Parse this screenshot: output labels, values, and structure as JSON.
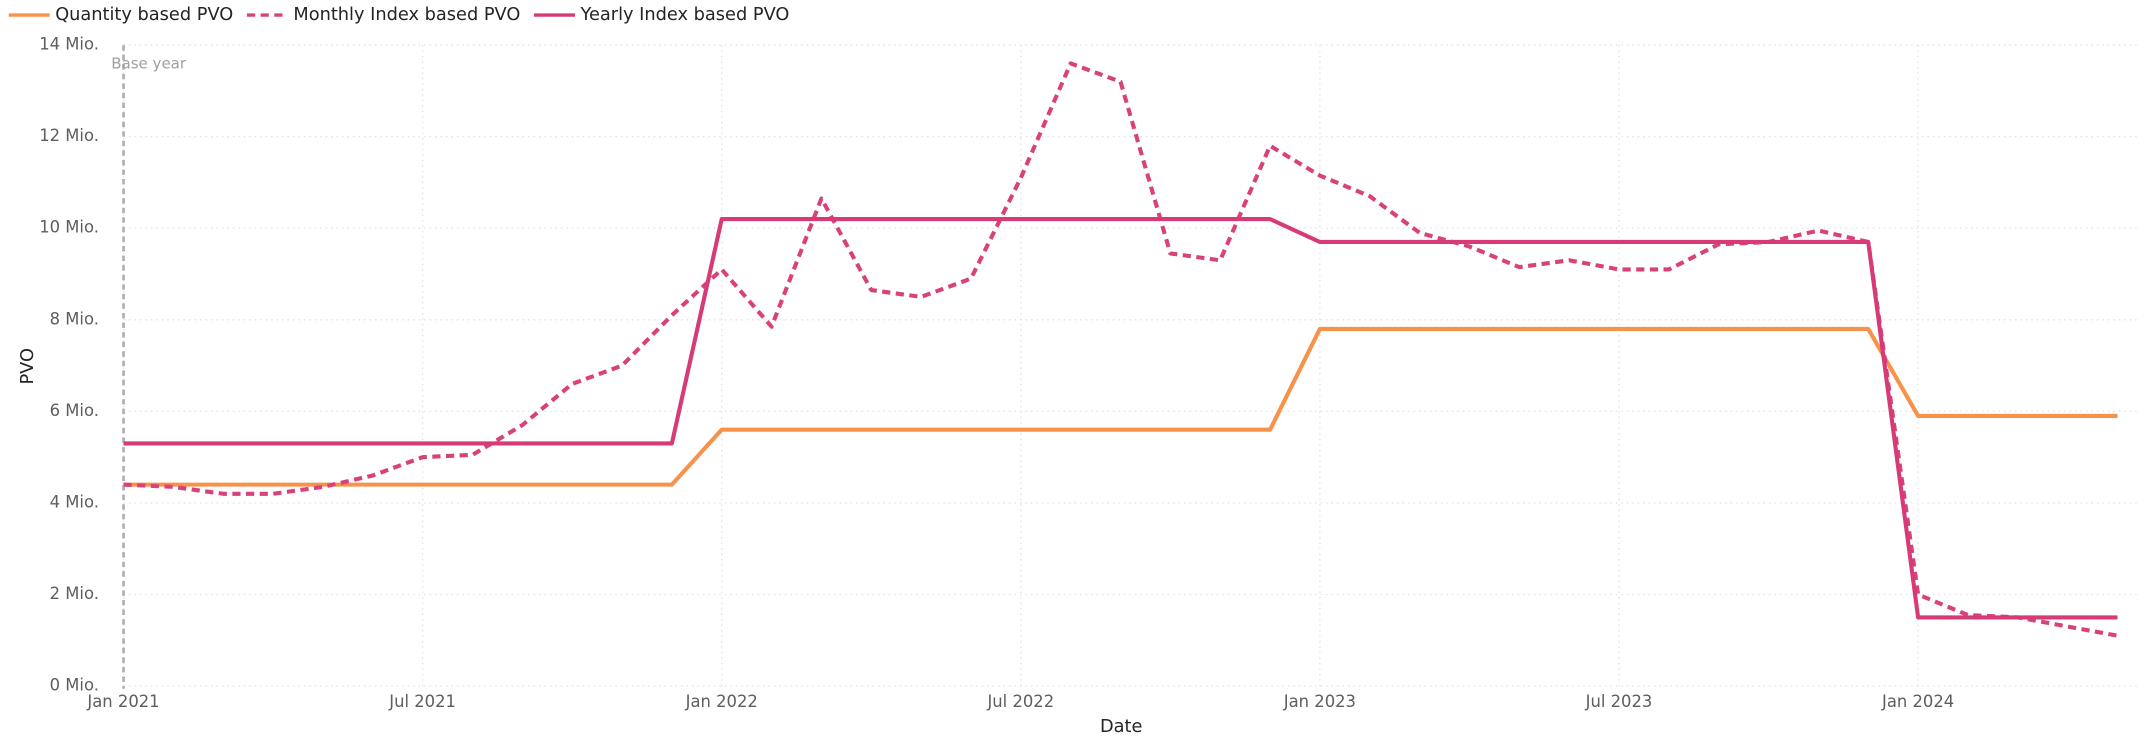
{
  "chart_data": {
    "type": "line",
    "x_label": "Date",
    "y_label": "PVO",
    "x": [
      "2021-01",
      "2021-02",
      "2021-03",
      "2021-04",
      "2021-05",
      "2021-06",
      "2021-07",
      "2021-08",
      "2021-09",
      "2021-10",
      "2021-11",
      "2021-12",
      "2022-01",
      "2022-02",
      "2022-03",
      "2022-04",
      "2022-05",
      "2022-06",
      "2022-07",
      "2022-08",
      "2022-09",
      "2022-10",
      "2022-11",
      "2022-12",
      "2023-01",
      "2023-02",
      "2023-03",
      "2023-04",
      "2023-05",
      "2023-06",
      "2023-07",
      "2023-08",
      "2023-09",
      "2023-10",
      "2023-11",
      "2023-12",
      "2024-01",
      "2024-02",
      "2024-03",
      "2024-04",
      "2024-05"
    ],
    "series": [
      {
        "name": "Quantity based PVO",
        "color": "#f7924a",
        "dash": false,
        "values": [
          4.4,
          4.4,
          4.4,
          4.4,
          4.4,
          4.4,
          4.4,
          4.4,
          4.4,
          4.4,
          4.4,
          4.4,
          5.6,
          5.6,
          5.6,
          5.6,
          5.6,
          5.6,
          5.6,
          5.6,
          5.6,
          5.6,
          5.6,
          5.6,
          7.8,
          7.8,
          7.8,
          7.8,
          7.8,
          7.8,
          7.8,
          7.8,
          7.8,
          7.8,
          7.8,
          7.8,
          5.9,
          5.9,
          5.9,
          5.9,
          5.9
        ]
      },
      {
        "name": "Monthly Index based PVO",
        "color": "#d9417b",
        "dash": true,
        "values": [
          4.4,
          4.35,
          4.2,
          4.2,
          4.35,
          4.6,
          5.0,
          5.05,
          5.7,
          6.6,
          7.0,
          8.1,
          9.1,
          7.85,
          10.65,
          8.65,
          8.5,
          8.9,
          11.1,
          13.6,
          13.2,
          9.45,
          9.3,
          11.8,
          11.15,
          10.7,
          9.9,
          9.6,
          9.15,
          9.3,
          9.1,
          9.1,
          9.65,
          9.7,
          9.95,
          9.7,
          2.0,
          1.55,
          1.5,
          1.3,
          1.1
        ]
      },
      {
        "name": "Yearly Index based PVO",
        "color": "#d63a77",
        "dash": false,
        "values": [
          5.3,
          5.3,
          5.3,
          5.3,
          5.3,
          5.3,
          5.3,
          5.3,
          5.3,
          5.3,
          5.3,
          5.3,
          10.2,
          10.2,
          10.2,
          10.2,
          10.2,
          10.2,
          10.2,
          10.2,
          10.2,
          10.2,
          10.2,
          10.2,
          9.7,
          9.7,
          9.7,
          9.7,
          9.7,
          9.7,
          9.7,
          9.7,
          9.7,
          9.7,
          9.7,
          9.7,
          1.5,
          1.5,
          1.5,
          1.5,
          1.5
        ]
      }
    ],
    "xlim": [
      "2021-01",
      "2024-05"
    ],
    "xticks": [
      {
        "value": "2021-01",
        "label": "Jan 2021"
      },
      {
        "value": "2021-07",
        "label": "Jul 2021"
      },
      {
        "value": "2022-01",
        "label": "Jan 2022"
      },
      {
        "value": "2022-07",
        "label": "Jul 2022"
      },
      {
        "value": "2023-01",
        "label": "Jan 2023"
      },
      {
        "value": "2023-07",
        "label": "Jul 2023"
      },
      {
        "value": "2024-01",
        "label": "Jan 2024"
      }
    ],
    "ylim": [
      0,
      14
    ],
    "yticks": [
      {
        "value": 0,
        "label": "0 Mio."
      },
      {
        "value": 2,
        "label": "2 Mio."
      },
      {
        "value": 4,
        "label": "4 Mio."
      },
      {
        "value": 6,
        "label": "6 Mio."
      },
      {
        "value": 8,
        "label": "8 Mio."
      },
      {
        "value": 10,
        "label": "10 Mio."
      },
      {
        "value": 12,
        "label": "12 Mio."
      },
      {
        "value": 14,
        "label": "14 Mio."
      }
    ],
    "grid": true,
    "legend": "top-left",
    "annotations": [
      {
        "x": "2021-01",
        "label": "Base year"
      }
    ]
  }
}
